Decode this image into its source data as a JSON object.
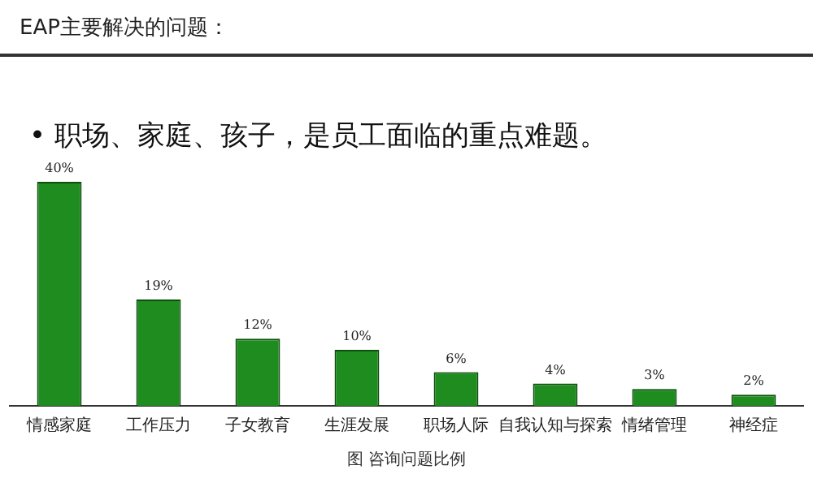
{
  "chart_data": {
    "type": "bar",
    "title": "EAP主要解决的问题：",
    "subtitle": "• 职场、家庭、孩子，是员工面临的重点难题。",
    "categories": [
      "情感家庭",
      "工作压力",
      "子女教育",
      "生涯发展",
      "职场人际",
      "自我认知与探索",
      "情绪管理",
      "神经症"
    ],
    "values": [
      40,
      19,
      12,
      10,
      6,
      4,
      3,
      2
    ],
    "value_labels": [
      "40%",
      "19%",
      "12%",
      "10%",
      "6%",
      "4%",
      "3%",
      "2%"
    ],
    "color": "#1e8c1e",
    "annotations": [
      "图    咨询问题比例"
    ],
    "grid": false,
    "legend": false
  }
}
